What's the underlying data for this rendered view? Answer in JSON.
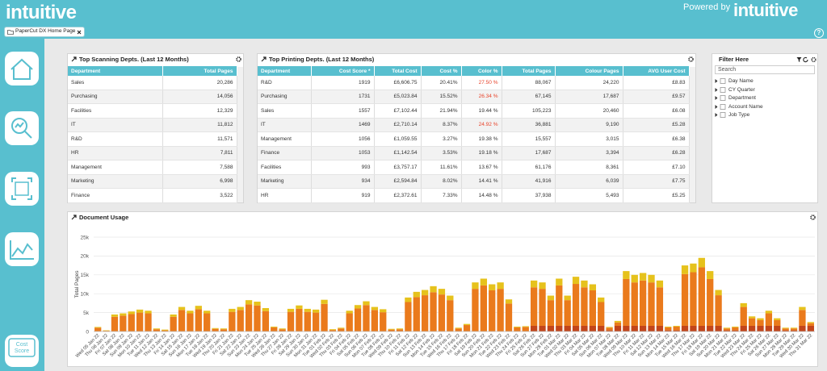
{
  "header": {
    "logo": "intuitive",
    "powered_by": "Powered by",
    "powered_logo": "intuitive",
    "help": "?"
  },
  "tab": {
    "label": "PaperCut DX Home Page"
  },
  "sidebar": {
    "cost_score": "Cost Score"
  },
  "scanning": {
    "title": "Top Scanning Depts. (Last 12 Months)",
    "columns": [
      "Department",
      "Total Pages"
    ],
    "rows": [
      [
        "Sales",
        "20,286"
      ],
      [
        "Purchasing",
        "14,056"
      ],
      [
        "Facilities",
        "12,329"
      ],
      [
        "IT",
        "11,812"
      ],
      [
        "R&D",
        "11,571"
      ],
      [
        "HR",
        "7,811"
      ],
      [
        "Management",
        "7,588"
      ],
      [
        "Marketing",
        "6,998"
      ],
      [
        "Finance",
        "3,522"
      ]
    ]
  },
  "printing": {
    "title": "Top Printing Depts. (Last 12 Months)",
    "columns": [
      "Department",
      "Cost Score *",
      "Total Cost",
      "Cost %",
      "Color %",
      "Total Pages",
      "Colour Pages",
      "AVG User Cost"
    ],
    "rows": [
      [
        "R&D",
        "1919",
        "£6,606.75",
        "20.41%",
        "27.50 %",
        "88,067",
        "24,220",
        "£8.83"
      ],
      [
        "Purchasing",
        "1731",
        "£5,023.84",
        "15.52%",
        "26.34 %",
        "67,145",
        "17,687",
        "£9.57"
      ],
      [
        "Sales",
        "1557",
        "£7,102.44",
        "21.94%",
        "19.44 %",
        "105,223",
        "20,460",
        "£6.08"
      ],
      [
        "IT",
        "1469",
        "£2,710.14",
        "8.37%",
        "24.92 %",
        "36,881",
        "9,190",
        "£5.28"
      ],
      [
        "Management",
        "1056",
        "£1,059.55",
        "3.27%",
        "19.38 %",
        "15,557",
        "3,015",
        "£6.38"
      ],
      [
        "Finance",
        "1053",
        "£1,142.54",
        "3.53%",
        "19.18 %",
        "17,687",
        "3,394",
        "£6.28"
      ],
      [
        "Facilities",
        "993",
        "£3,757.17",
        "11.61%",
        "13.67 %",
        "61,176",
        "8,361",
        "£7.10"
      ],
      [
        "Marketing",
        "934",
        "£2,594.84",
        "8.02%",
        "14.41 %",
        "41,916",
        "6,039",
        "£7.75"
      ],
      [
        "HR",
        "919",
        "£2,372.61",
        "7.33%",
        "14.48 %",
        "37,938",
        "5,493",
        "£5.25"
      ]
    ],
    "highlight": {
      "color": "#e8432a",
      "column": 4,
      "rows": [
        0,
        1,
        3
      ]
    }
  },
  "filter": {
    "title": "Filter Here",
    "search": "Search",
    "items": [
      "Day Name",
      "CY Quarter",
      "Department",
      "Account Name",
      "Job Type"
    ]
  },
  "chart_data": {
    "type": "stacked_bar",
    "title": "Document Usage",
    "y_label": "Total Pages",
    "categories": [
      "Wed 05 Jan 22",
      "Thu 06 Jan 22",
      "Fri 07 Jan 22",
      "Sat 08 Jan 22",
      "Sun 09 Jan 22",
      "Mon 10 Jan 22",
      "Tue 11 Jan 22",
      "Wed 12 Jan 22",
      "Thu 13 Jan 22",
      "Fri 14 Jan 22",
      "Sat 15 Jan 22",
      "Sun 16 Jan 22",
      "Mon 17 Jan 22",
      "Tue 18 Jan 22",
      "Wed 19 Jan 22",
      "Thu 20 Jan 22",
      "Fri 21 Jan 22",
      "Sat 22 Jan 22",
      "Sun 23 Jan 22",
      "Mon 24 Jan 22",
      "Tue 25 Jan 22",
      "Wed 26 Jan 22",
      "Thu 27 Jan 22",
      "Fri 28 Jan 22",
      "Sat 29 Jan 22",
      "Sun 30 Jan 22",
      "Mon 31 Jan 22",
      "Tue 01 Feb 22",
      "Wed 02 Feb 22",
      "Thu 03 Feb 22",
      "Fri 04 Feb 22",
      "Sat 05 Feb 22",
      "Sun 06 Feb 22",
      "Mon 07 Feb 22",
      "Tue 08 Feb 22",
      "Wed 09 Feb 22",
      "Thu 10 Feb 22",
      "Fri 11 Feb 22",
      "Sat 12 Feb 22",
      "Sun 13 Feb 22",
      "Mon 14 Feb 22",
      "Tue 15 Feb 22",
      "Wed 16 Feb 22",
      "Thu 17 Feb 22",
      "Fri 18 Feb 22",
      "Sat 19 Feb 22",
      "Sun 20 Feb 22",
      "Mon 21 Feb 22",
      "Tue 22 Feb 22",
      "Wed 23 Feb 22",
      "Thu 24 Feb 22",
      "Fri 25 Feb 22",
      "Sat 26 Feb 22",
      "Sun 27 Feb 22",
      "Mon 28 Feb 22",
      "Tue 01 Mar 22",
      "Wed 02 Mar 22",
      "Thu 03 Mar 22",
      "Fri 04 Mar 22",
      "Sat 05 Mar 22",
      "Sun 06 Mar 22",
      "Mon 07 Mar 22",
      "Tue 08 Mar 22",
      "Wed 09 Mar 22",
      "Thu 10 Mar 22",
      "Fri 11 Mar 22",
      "Sat 12 Mar 22",
      "Sun 13 Mar 22",
      "Mon 14 Mar 22",
      "Tue 15 Mar 22",
      "Wed 16 Mar 22",
      "Thu 17 Mar 22",
      "Fri 18 Mar 22",
      "Sat 19 Mar 22",
      "Sun 20 Mar 22",
      "Mon 21 Mar 22",
      "Tue 22 Mar 22",
      "Wed 23 Mar 22",
      "Thu 24 Mar 22",
      "Fri 25 Mar 22",
      "Sat 26 Mar 22",
      "Sun 27 Mar 22",
      "Mon 28 Mar 22",
      "Tue 29 Mar 22",
      "Wed 30 Mar 22",
      "Thu 31 Mar 22"
    ],
    "series": [
      {
        "color": "#c2451b",
        "values": [
          0,
          0,
          0,
          0,
          0,
          0,
          0,
          0,
          0,
          0,
          0,
          0,
          0,
          0,
          0,
          0,
          0,
          0,
          0,
          0,
          0,
          0,
          0,
          0,
          0,
          0,
          0,
          0,
          0,
          0,
          0,
          0,
          0,
          0,
          0,
          0,
          0,
          0,
          0,
          0,
          0,
          0,
          0,
          0,
          0,
          0,
          0,
          0,
          0,
          0,
          0,
          0,
          1500,
          1500,
          1500,
          1500,
          1500,
          1500,
          1500,
          1500,
          1500,
          300,
          1500,
          1500,
          1500,
          1500,
          1500,
          1500,
          300,
          300,
          1500,
          1500,
          1500,
          1500,
          1500,
          300,
          300,
          1500,
          1500,
          1500,
          1500,
          1500,
          300,
          300,
          1500,
          1500
        ]
      },
      {
        "color": "#ea7a1c",
        "values": [
          1000,
          200,
          3900,
          4200,
          4600,
          5000,
          4800,
          600,
          300,
          3900,
          5700,
          4800,
          5900,
          4800,
          700,
          600,
          5200,
          5700,
          7200,
          6900,
          5400,
          1100,
          600,
          5200,
          6000,
          5200,
          5000,
          7300,
          400,
          800,
          4800,
          6100,
          7000,
          5700,
          5100,
          500,
          600,
          7800,
          9100,
          9600,
          10400,
          9800,
          8300,
          800,
          1700,
          11300,
          12200,
          10900,
          11300,
          7400,
          1100,
          1200,
          10200,
          9800,
          6800,
          10700,
          6800,
          11100,
          10200,
          9400,
          6300,
          700,
          900,
          12400,
          11500,
          12000,
          11500,
          10200,
          800,
          1000,
          13700,
          14200,
          15500,
          12400,
          8100,
          500,
          800,
          5000,
          2000,
          1500,
          3300,
          1500,
          500,
          500,
          4200,
          700
        ]
      },
      {
        "color": "#e6c21c",
        "values": [
          200,
          100,
          600,
          600,
          700,
          800,
          700,
          200,
          200,
          600,
          800,
          700,
          900,
          700,
          200,
          200,
          800,
          800,
          1100,
          1000,
          800,
          200,
          200,
          800,
          900,
          800,
          800,
          1100,
          200,
          200,
          700,
          900,
          1000,
          800,
          800,
          200,
          200,
          1200,
          1400,
          1400,
          1600,
          1500,
          1200,
          200,
          300,
          1700,
          1800,
          1600,
          1700,
          1100,
          200,
          200,
          1800,
          1700,
          1200,
          1800,
          1200,
          1900,
          1800,
          1600,
          1200,
          200,
          400,
          2100,
          2000,
          2000,
          2000,
          1800,
          200,
          200,
          2300,
          2300,
          2500,
          2100,
          1400,
          200,
          200,
          1000,
          500,
          500,
          700,
          500,
          200,
          200,
          800,
          300
        ]
      }
    ],
    "ylim": [
      0,
      25000
    ],
    "yticks": [
      0,
      {
        "value": 5000,
        "label": "5k"
      },
      {
        "value": 10000,
        "label": "10k"
      },
      {
        "value": 15000,
        "label": "15k"
      },
      {
        "value": 20000,
        "label": "20k"
      },
      {
        "value": 25000,
        "label": "25k"
      }
    ],
    "grid": true
  }
}
